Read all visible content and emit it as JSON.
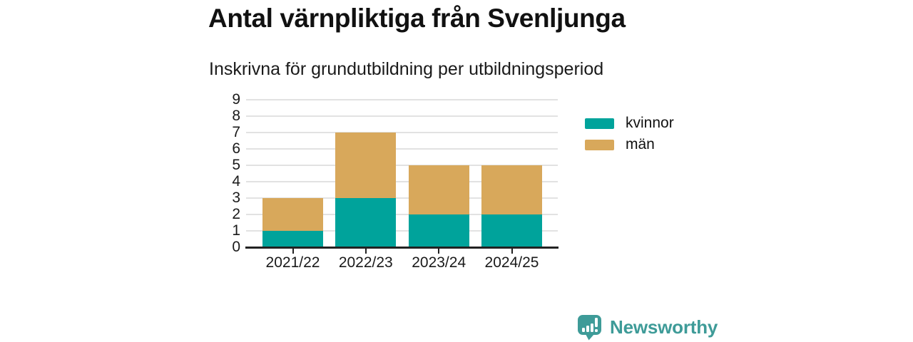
{
  "title": "Antal värnpliktiga från Svenljunga",
  "subtitle": "Inskrivna för grundutbildning per utbildningsperiod",
  "chart_data": {
    "type": "bar",
    "stacked": true,
    "title": "Antal värnpliktiga från Svenljunga",
    "subtitle": "Inskrivna för grundutbildning per utbildningsperiod",
    "categories": [
      "2021/22",
      "2022/23",
      "2023/24",
      "2024/25"
    ],
    "series": [
      {
        "name": "kvinnor",
        "color": "#00A39B",
        "values": [
          1,
          3,
          2,
          2
        ]
      },
      {
        "name": "män",
        "color": "#D8A85B",
        "values": [
          2,
          4,
          3,
          3
        ]
      }
    ],
    "totals": [
      3,
      7,
      5,
      5
    ],
    "xlabel": "",
    "ylabel": "",
    "ylim": [
      0,
      9
    ],
    "ytick_step": 1,
    "grid": true,
    "legend_position": "right-top"
  },
  "branding": {
    "logo_text": "Newsworthy",
    "logo_color": "#3E9B98",
    "logo_icon": "bar-chart-speech-bubble-icon"
  }
}
